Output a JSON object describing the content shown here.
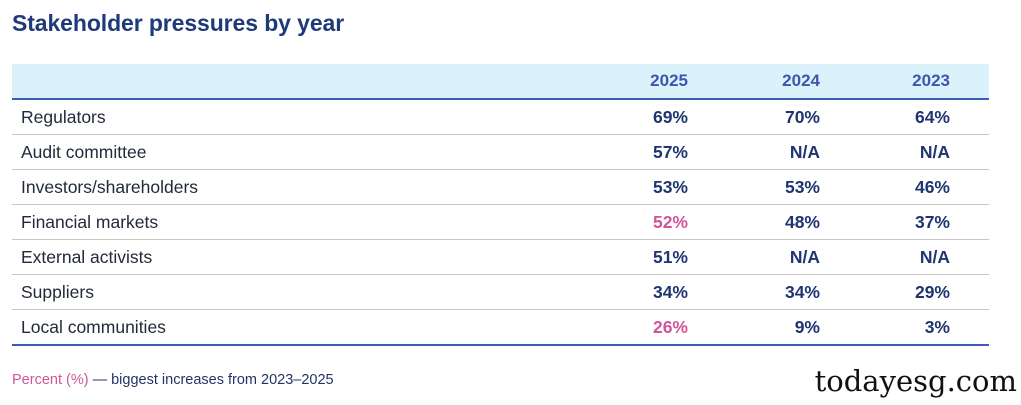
{
  "title": "Stakeholder pressures by year",
  "table": {
    "columns": [
      "2025",
      "2024",
      "2023"
    ],
    "rows": [
      {
        "label": "Regulators",
        "values": [
          "69%",
          "70%",
          "64%"
        ],
        "highlight": [
          false,
          false,
          false
        ]
      },
      {
        "label": "Audit committee",
        "values": [
          "57%",
          "N/A",
          "N/A"
        ],
        "highlight": [
          false,
          false,
          false
        ]
      },
      {
        "label": "Investors/shareholders",
        "values": [
          "53%",
          "53%",
          "46%"
        ],
        "highlight": [
          false,
          false,
          false
        ]
      },
      {
        "label": "Financial markets",
        "values": [
          "52%",
          "48%",
          "37%"
        ],
        "highlight": [
          true,
          false,
          false
        ]
      },
      {
        "label": "External activists",
        "values": [
          "51%",
          "N/A",
          "N/A"
        ],
        "highlight": [
          false,
          false,
          false
        ]
      },
      {
        "label": "Suppliers",
        "values": [
          "34%",
          "34%",
          "29%"
        ],
        "highlight": [
          false,
          false,
          false
        ]
      },
      {
        "label": "Local communities",
        "values": [
          "26%",
          "9%",
          "3%"
        ],
        "highlight": [
          true,
          false,
          false
        ]
      }
    ]
  },
  "legend": {
    "highlight_label": "Percent (%)",
    "text": " — biggest increases from 2023–2025"
  },
  "watermark": "todayesg.com",
  "colors": {
    "title": "#1e3a78",
    "header_bg": "#dbf2fb",
    "header_text": "#3d56b0",
    "value_text": "#1e3570",
    "highlight": "#d1559a",
    "rule": "#3d5db5"
  }
}
